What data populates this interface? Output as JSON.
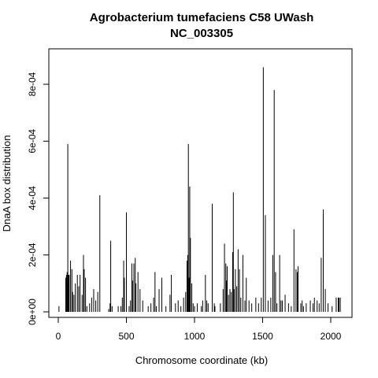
{
  "chart_data": {
    "type": "bar",
    "title": "Agrobacterium tumefaciens C58 UWash",
    "subtitle": "NC_003305",
    "xlabel": "Chromosome coordinate (kb)",
    "ylabel": "DnaA box distribution",
    "xlim": [
      0,
      2100
    ],
    "ylim": [
      0,
      0.00093
    ],
    "x_ticks": [
      0,
      500,
      1000,
      1500,
      2000
    ],
    "x_tick_labels": [
      "0",
      "500",
      "1000",
      "1500",
      "2000"
    ],
    "y_ticks": [
      0,
      0.0002,
      0.0004,
      0.0006,
      0.0008
    ],
    "y_tick_labels": [
      "0e+00",
      "2e-04",
      "4e-04",
      "6e-04",
      "8e-04"
    ],
    "grid": false,
    "legend": "none",
    "color": "#000000",
    "x": [
      5,
      55,
      60,
      65,
      70,
      75,
      80,
      90,
      100,
      105,
      115,
      125,
      140,
      150,
      160,
      175,
      185,
      190,
      200,
      210,
      230,
      245,
      260,
      275,
      290,
      305,
      370,
      380,
      385,
      395,
      440,
      460,
      470,
      480,
      485,
      500,
      520,
      530,
      540,
      545,
      555,
      565,
      570,
      585,
      600,
      620,
      660,
      680,
      700,
      710,
      720,
      740,
      760,
      790,
      820,
      830,
      860,
      880,
      900,
      920,
      935,
      945,
      950,
      955,
      960,
      965,
      970,
      980,
      990,
      1000,
      1020,
      1050,
      1060,
      1080,
      1090,
      1100,
      1130,
      1145,
      1150,
      1190,
      1210,
      1220,
      1230,
      1235,
      1240,
      1250,
      1260,
      1270,
      1280,
      1285,
      1290,
      1300,
      1310,
      1320,
      1330,
      1340,
      1355,
      1370,
      1380,
      1400,
      1420,
      1450,
      1470,
      1490,
      1505,
      1520,
      1540,
      1560,
      1575,
      1585,
      1595,
      1605,
      1625,
      1635,
      1645,
      1665,
      1690,
      1710,
      1730,
      1745,
      1755,
      1760,
      1780,
      1790,
      1800,
      1820,
      1850,
      1870,
      1880,
      1900,
      1915,
      1930,
      1945,
      1960,
      1980,
      2010,
      2040,
      2055,
      2060,
      2070
    ],
    "values": [
      2e-05,
      0.00012,
      0.00013,
      0.00014,
      0.00059,
      0.00013,
      0.00013,
      0.00018,
      0.00015,
      7e-05,
      6e-05,
      0.0001,
      0.00013,
      9e-05,
      0.00013,
      6e-05,
      0.0002,
      0.00015,
      0.00012,
      2e-05,
      3e-05,
      5e-05,
      8e-05,
      4e-05,
      7e-05,
      0.00041,
      1e-05,
      3e-05,
      0.00025,
      2e-05,
      2e-05,
      2e-05,
      5e-05,
      0.00018,
      0.00012,
      0.00035,
      2e-05,
      4e-05,
      0.00017,
      0.00011,
      0.00017,
      0.00019,
      0.0001,
      0.00014,
      8e-05,
      4e-05,
      2e-05,
      3e-05,
      5e-05,
      0.00014,
      2e-05,
      8e-05,
      0.00012,
      2e-05,
      6e-05,
      0.00013,
      3e-05,
      4e-05,
      2e-05,
      5e-05,
      7e-05,
      0.00018,
      0.0002,
      0.00059,
      0.00012,
      0.00044,
      0.00026,
      0.0001,
      3e-05,
      2e-05,
      3e-05,
      2e-05,
      4e-05,
      0.00013,
      4e-05,
      3e-05,
      0.00038,
      3e-05,
      2e-05,
      3e-05,
      8e-05,
      0.00024,
      0.00017,
      0.00011,
      0.00016,
      6e-05,
      8e-05,
      7e-05,
      0.00021,
      0.00042,
      8e-05,
      0.00015,
      9e-05,
      0.00022,
      0.00015,
      5e-05,
      0.0002,
      4e-05,
      0.00012,
      4e-05,
      3e-05,
      5e-05,
      3e-05,
      5e-05,
      0.00086,
      0.00034,
      4e-05,
      5e-05,
      0.0002,
      0.00078,
      0.00014,
      3e-05,
      0.0002,
      4e-05,
      4e-05,
      6e-05,
      3e-05,
      2e-05,
      0.00029,
      0.00015,
      0.00014,
      0.00016,
      3e-05,
      4e-05,
      2e-05,
      3e-05,
      4e-05,
      3e-05,
      5e-05,
      4e-05,
      3e-05,
      0.00019,
      0.00036,
      8e-05,
      3e-05,
      2e-05,
      5e-05,
      5e-05,
      5e-05,
      5e-05
    ]
  }
}
